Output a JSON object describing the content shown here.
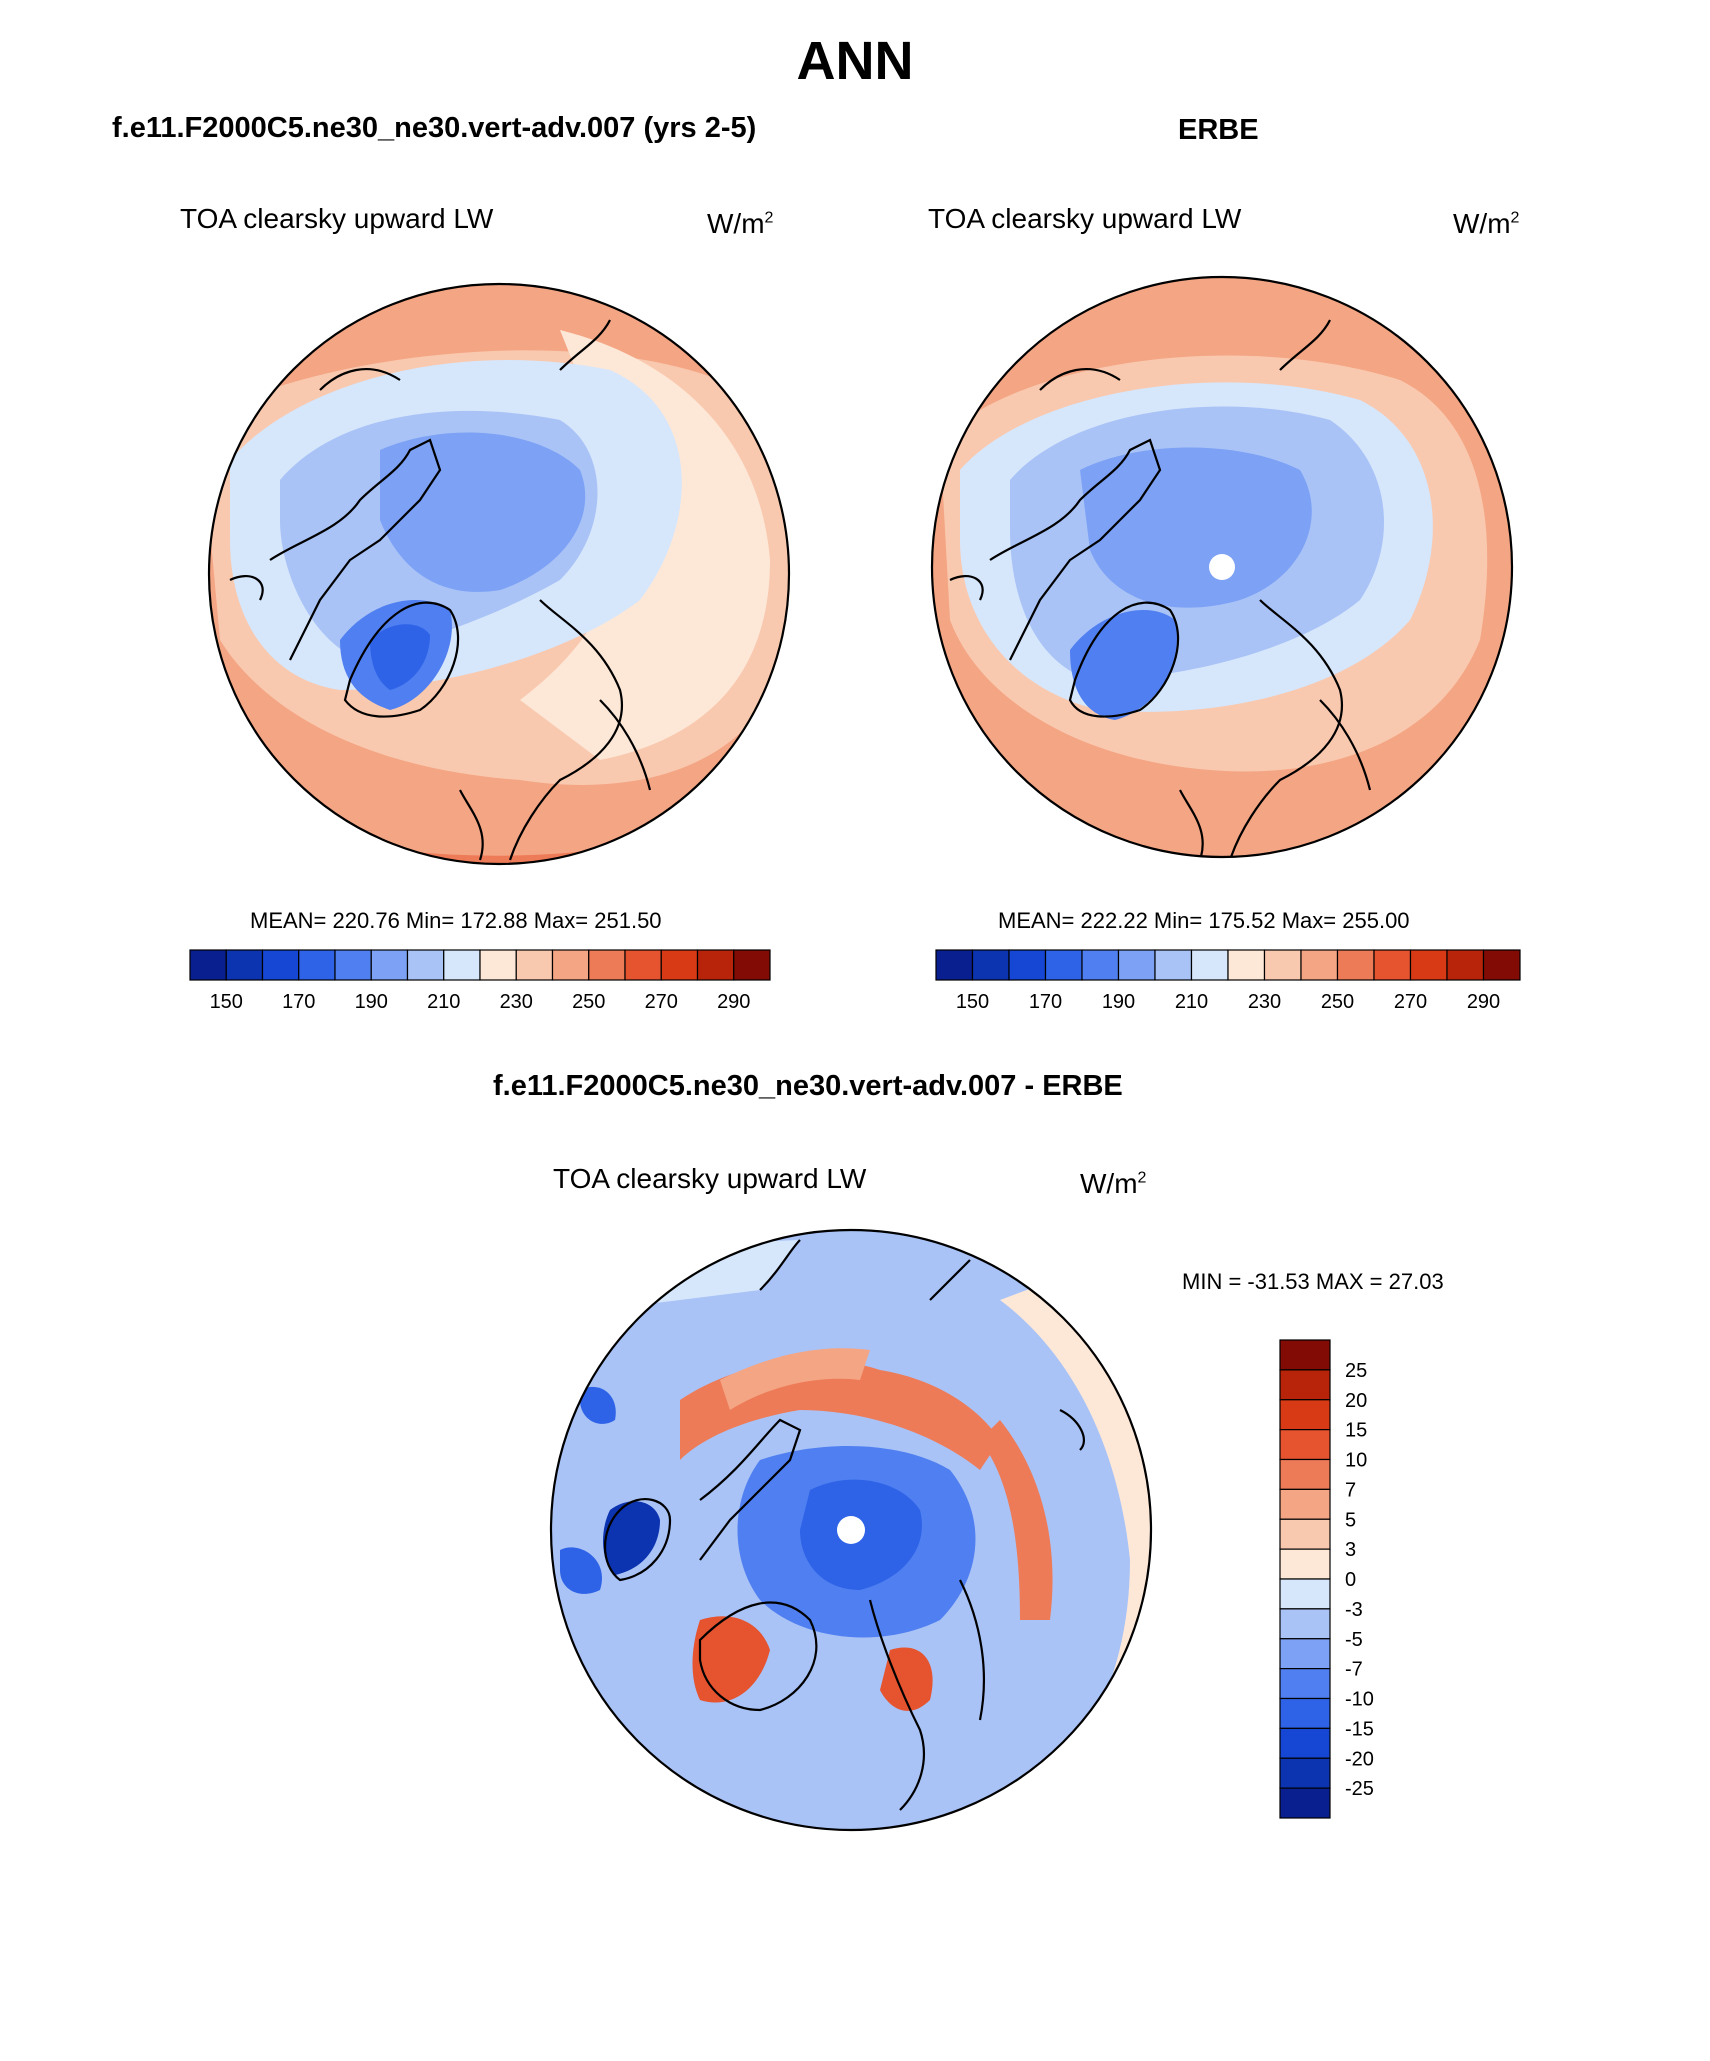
{
  "title": "ANN",
  "panels": [
    {
      "title": "f.e11.F2000C5.ne30_ne30.vert-adv.007 (yrs 2-5)",
      "variable": "TOA clearsky upward LW",
      "units": "W/m",
      "units_sup": "2",
      "stats": "MEAN= 220.76  Min= 172.88  Max= 251.50"
    },
    {
      "title": "ERBE",
      "variable": "TOA clearsky upward LW",
      "units": "W/m",
      "units_sup": "2",
      "stats": "MEAN= 222.22  Min= 175.52  Max= 255.00"
    },
    {
      "title": "f.e11.F2000C5.ne30_ne30.vert-adv.007 - ERBE",
      "variable": "TOA clearsky upward LW",
      "units": "W/m",
      "units_sup": "2",
      "stats": "MIN = -31.53 MAX =  27.03"
    }
  ],
  "colorbar_abs": {
    "colors": [
      "#0a1f8f",
      "#0c33b0",
      "#1646d4",
      "#2e63e8",
      "#4f7ff0",
      "#7ca1f5",
      "#a9c3f7",
      "#d6e6fb",
      "#fde8d8",
      "#f9c9af",
      "#f4a584",
      "#ee7b58",
      "#e5532f",
      "#d83a15",
      "#b8240a",
      "#820b05"
    ],
    "tick_labels": [
      "150",
      "170",
      "190",
      "210",
      "230",
      "250",
      "270",
      "290"
    ],
    "tick_values": [
      150,
      170,
      190,
      210,
      230,
      250,
      270,
      290
    ]
  },
  "colorbar_diff": {
    "colors": [
      "#820b05",
      "#b8240a",
      "#d83a15",
      "#e5532f",
      "#ee7b58",
      "#f4a584",
      "#f9c9af",
      "#fde8d8",
      "#d6e6fb",
      "#a9c3f7",
      "#7ca1f5",
      "#4f7ff0",
      "#2e63e8",
      "#1646d4",
      "#0c33b0",
      "#0a1f8f"
    ],
    "tick_labels": [
      "25",
      "20",
      "15",
      "10",
      "7",
      "5",
      "3",
      "0",
      "-3",
      "-5",
      "-7",
      "-10",
      "-15",
      "-20",
      "-25"
    ],
    "tick_values": [
      25,
      20,
      15,
      10,
      7,
      5,
      3,
      0,
      -3,
      -5,
      -7,
      -10,
      -15,
      -20,
      -25
    ]
  }
}
